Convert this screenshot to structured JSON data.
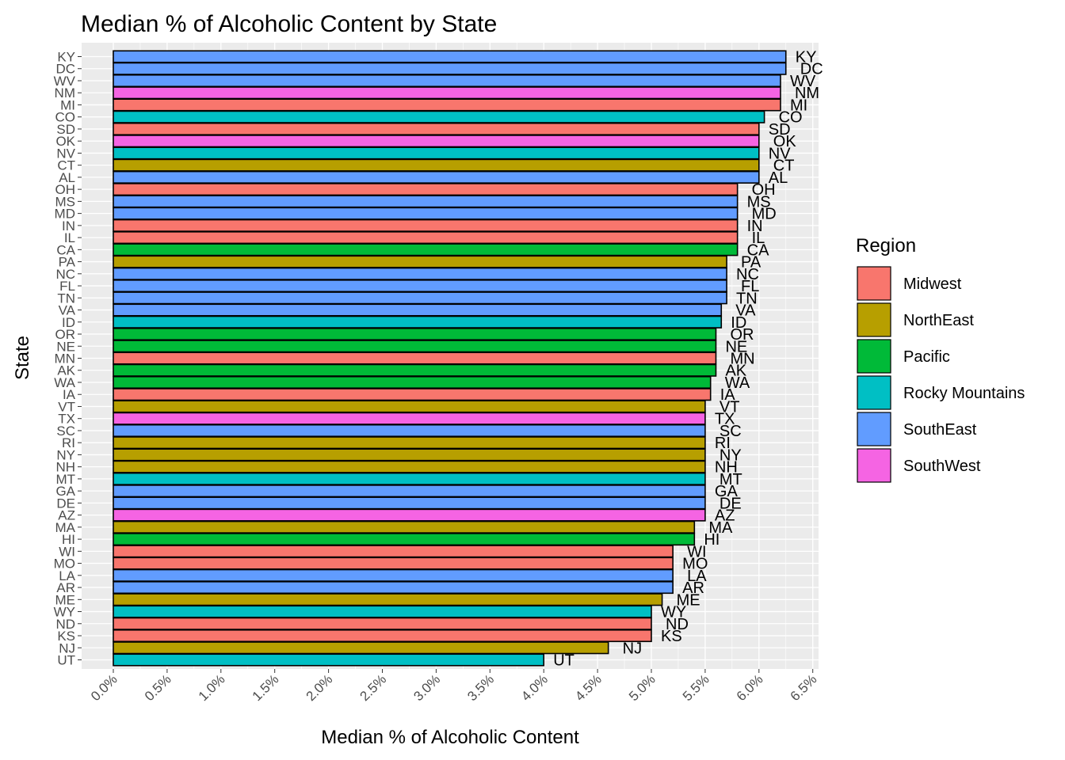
{
  "chart_data": {
    "type": "bar",
    "orientation": "horizontal",
    "title": "Median % of Alcoholic Content by State",
    "xlabel": "Median % of Alcoholic Content",
    "ylabel": "State",
    "xlim": [
      0,
      6.5
    ],
    "x_ticks": [
      "0.0%",
      "0.5%",
      "1.0%",
      "1.5%",
      "2.0%",
      "2.5%",
      "3.0%",
      "3.5%",
      "4.0%",
      "4.5%",
      "5.0%",
      "5.5%",
      "6.0%",
      "6.5%"
    ],
    "grid": true,
    "legend": {
      "title": "Region",
      "position": "right",
      "entries": [
        {
          "name": "Midwest",
          "color": "#F8766D"
        },
        {
          "name": "NorthEast",
          "color": "#B79F00"
        },
        {
          "name": "Pacific",
          "color": "#00BA38"
        },
        {
          "name": "Rocky Mountains",
          "color": "#00BFC4"
        },
        {
          "name": "SouthEast",
          "color": "#619CFF"
        },
        {
          "name": "SouthWest",
          "color": "#F564E3"
        }
      ]
    },
    "bars": [
      {
        "state": "KY",
        "region": "SouthEast",
        "value": 6.25
      },
      {
        "state": "DC",
        "region": "SouthEast",
        "value": 6.25
      },
      {
        "state": "WV",
        "region": "SouthEast",
        "value": 6.2
      },
      {
        "state": "NM",
        "region": "SouthWest",
        "value": 6.2
      },
      {
        "state": "MI",
        "region": "Midwest",
        "value": 6.2
      },
      {
        "state": "CO",
        "region": "Rocky Mountains",
        "value": 6.05
      },
      {
        "state": "SD",
        "region": "Midwest",
        "value": 6.0
      },
      {
        "state": "OK",
        "region": "SouthWest",
        "value": 6.0
      },
      {
        "state": "NV",
        "region": "Rocky Mountains",
        "value": 6.0
      },
      {
        "state": "CT",
        "region": "NorthEast",
        "value": 6.0
      },
      {
        "state": "AL",
        "region": "SouthEast",
        "value": 6.0
      },
      {
        "state": "OH",
        "region": "Midwest",
        "value": 5.8
      },
      {
        "state": "MS",
        "region": "SouthEast",
        "value": 5.8
      },
      {
        "state": "MD",
        "region": "SouthEast",
        "value": 5.8
      },
      {
        "state": "IN",
        "region": "Midwest",
        "value": 5.8
      },
      {
        "state": "IL",
        "region": "Midwest",
        "value": 5.8
      },
      {
        "state": "CA",
        "region": "Pacific",
        "value": 5.8
      },
      {
        "state": "PA",
        "region": "NorthEast",
        "value": 5.7
      },
      {
        "state": "NC",
        "region": "SouthEast",
        "value": 5.7
      },
      {
        "state": "FL",
        "region": "SouthEast",
        "value": 5.7
      },
      {
        "state": "TN",
        "region": "SouthEast",
        "value": 5.7
      },
      {
        "state": "VA",
        "region": "SouthEast",
        "value": 5.65
      },
      {
        "state": "ID",
        "region": "Rocky Mountains",
        "value": 5.65
      },
      {
        "state": "OR",
        "region": "Pacific",
        "value": 5.6
      },
      {
        "state": "NE",
        "region": "Pacific",
        "value": 5.6
      },
      {
        "state": "MN",
        "region": "Midwest",
        "value": 5.6
      },
      {
        "state": "AK",
        "region": "Pacific",
        "value": 5.6
      },
      {
        "state": "WA",
        "region": "Pacific",
        "value": 5.55
      },
      {
        "state": "IA",
        "region": "Midwest",
        "value": 5.55
      },
      {
        "state": "VT",
        "region": "NorthEast",
        "value": 5.5
      },
      {
        "state": "TX",
        "region": "SouthWest",
        "value": 5.5
      },
      {
        "state": "SC",
        "region": "SouthEast",
        "value": 5.5
      },
      {
        "state": "RI",
        "region": "NorthEast",
        "value": 5.5
      },
      {
        "state": "NY",
        "region": "NorthEast",
        "value": 5.5
      },
      {
        "state": "NH",
        "region": "NorthEast",
        "value": 5.5
      },
      {
        "state": "MT",
        "region": "Rocky Mountains",
        "value": 5.5
      },
      {
        "state": "GA",
        "region": "SouthEast",
        "value": 5.5
      },
      {
        "state": "DE",
        "region": "SouthEast",
        "value": 5.5
      },
      {
        "state": "AZ",
        "region": "SouthWest",
        "value": 5.5
      },
      {
        "state": "MA",
        "region": "NorthEast",
        "value": 5.4
      },
      {
        "state": "HI",
        "region": "Pacific",
        "value": 5.4
      },
      {
        "state": "WI",
        "region": "Midwest",
        "value": 5.2
      },
      {
        "state": "MO",
        "region": "Midwest",
        "value": 5.2
      },
      {
        "state": "LA",
        "region": "SouthEast",
        "value": 5.2
      },
      {
        "state": "AR",
        "region": "SouthEast",
        "value": 5.2
      },
      {
        "state": "ME",
        "region": "NorthEast",
        "value": 5.1
      },
      {
        "state": "WY",
        "region": "Rocky Mountains",
        "value": 5.0
      },
      {
        "state": "ND",
        "region": "Midwest",
        "value": 5.0
      },
      {
        "state": "KS",
        "region": "Midwest",
        "value": 5.0
      },
      {
        "state": "NJ",
        "region": "NorthEast",
        "value": 4.6
      },
      {
        "state": "UT",
        "region": "Rocky Mountains",
        "value": 4.0
      }
    ]
  }
}
